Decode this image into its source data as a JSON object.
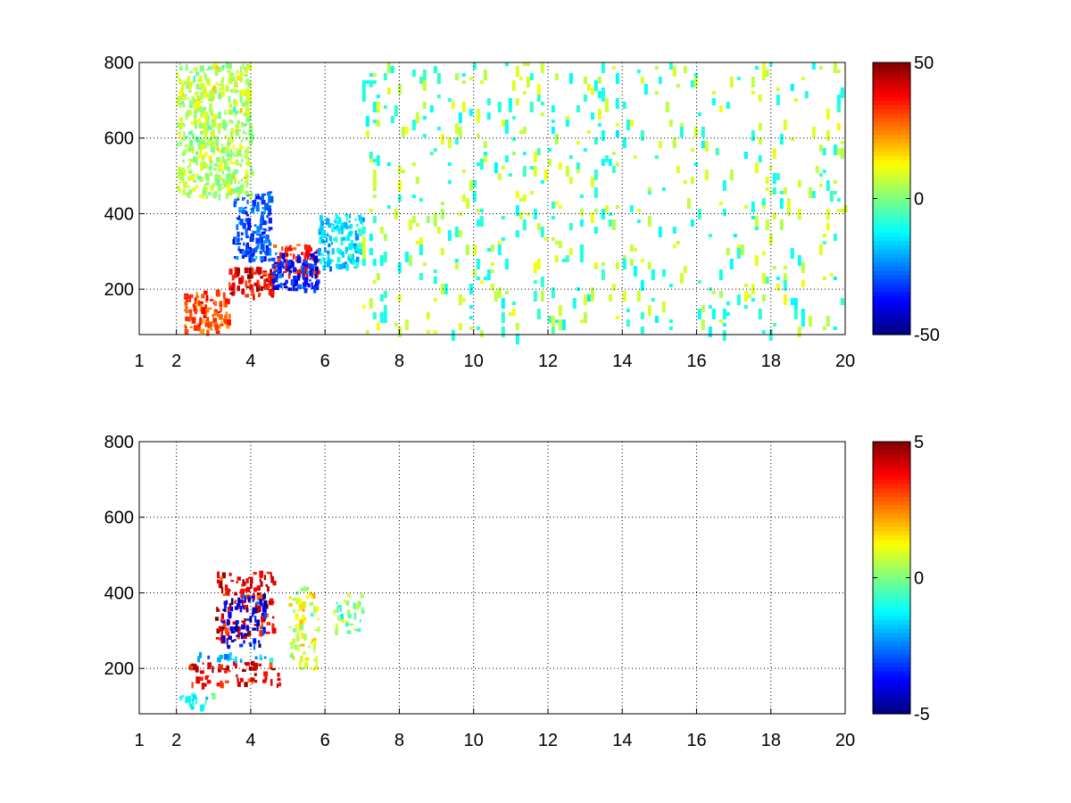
{
  "chart_data": [
    {
      "type": "heatmap",
      "title": "",
      "xlabel": "",
      "ylabel": "",
      "xlim": [
        1,
        20
      ],
      "ylim": [
        80,
        800
      ],
      "x_ticks": [
        "1",
        "2",
        "4",
        "6",
        "8",
        "10",
        "12",
        "14",
        "16",
        "18",
        "20"
      ],
      "x_tick_values": [
        1,
        2,
        4,
        6,
        8,
        10,
        12,
        14,
        16,
        18,
        20
      ],
      "y_ticks": [
        "200",
        "400",
        "600",
        "800"
      ],
      "y_tick_values": [
        200,
        400,
        600,
        800
      ],
      "grid": true,
      "colormap": "jet",
      "clim": [
        -50,
        50
      ],
      "colorbar_ticks": [
        "50",
        "0",
        "-50"
      ],
      "colorbar_tick_values": [
        50,
        0,
        -50
      ],
      "data_regions": [
        {
          "x": [
            2.2,
            3.4
          ],
          "y": [
            90,
            200
          ],
          "value": 30
        },
        {
          "x": [
            3.4,
            4.6
          ],
          "y": [
            180,
            260
          ],
          "value": 40
        },
        {
          "x": [
            4.6,
            5.8
          ],
          "y": [
            240,
            320
          ],
          "value": 35
        },
        {
          "x": [
            3.5,
            4.5
          ],
          "y": [
            280,
            460
          ],
          "value": -30
        },
        {
          "x": [
            4.5,
            5.8
          ],
          "y": [
            200,
            300
          ],
          "value": -35
        },
        {
          "x": [
            5.8,
            7.0
          ],
          "y": [
            260,
            400
          ],
          "value": -15
        },
        {
          "x": [
            2.0,
            4.0
          ],
          "y": [
            450,
            800
          ],
          "value": 5
        },
        {
          "x": [
            7.0,
            20.0
          ],
          "y": [
            80,
            800
          ],
          "value": 0
        }
      ]
    },
    {
      "type": "heatmap",
      "title": "",
      "xlabel": "",
      "ylabel": "",
      "xlim": [
        1,
        20
      ],
      "ylim": [
        80,
        800
      ],
      "x_ticks": [
        "1",
        "2",
        "4",
        "6",
        "8",
        "10",
        "12",
        "14",
        "16",
        "18",
        "20"
      ],
      "x_tick_values": [
        1,
        2,
        4,
        6,
        8,
        10,
        12,
        14,
        16,
        18,
        20
      ],
      "y_ticks": [
        "200",
        "400",
        "600",
        "800"
      ],
      "y_tick_values": [
        200,
        400,
        600,
        800
      ],
      "grid": true,
      "colormap": "jet",
      "clim": [
        -5,
        5
      ],
      "colorbar_ticks": [
        "5",
        "0",
        "-5"
      ],
      "colorbar_tick_values": [
        5,
        0,
        -5
      ],
      "data_regions": [
        {
          "x": [
            2.3,
            4.8
          ],
          "y": [
            160,
            220
          ],
          "value": 4
        },
        {
          "x": [
            2.5,
            4.8
          ],
          "y": [
            225,
            245
          ],
          "value": -2
        },
        {
          "x": [
            3.0,
            4.6
          ],
          "y": [
            280,
            460
          ],
          "value": 4
        },
        {
          "x": [
            3.2,
            4.4
          ],
          "y": [
            260,
            400
          ],
          "value": -4
        },
        {
          "x": [
            5.0,
            5.8
          ],
          "y": [
            200,
            420
          ],
          "value": 1
        },
        {
          "x": [
            2.0,
            3.0
          ],
          "y": [
            100,
            140
          ],
          "value": -1
        },
        {
          "x": [
            6.2,
            7.0
          ],
          "y": [
            300,
            400
          ],
          "value": 0
        }
      ]
    }
  ]
}
